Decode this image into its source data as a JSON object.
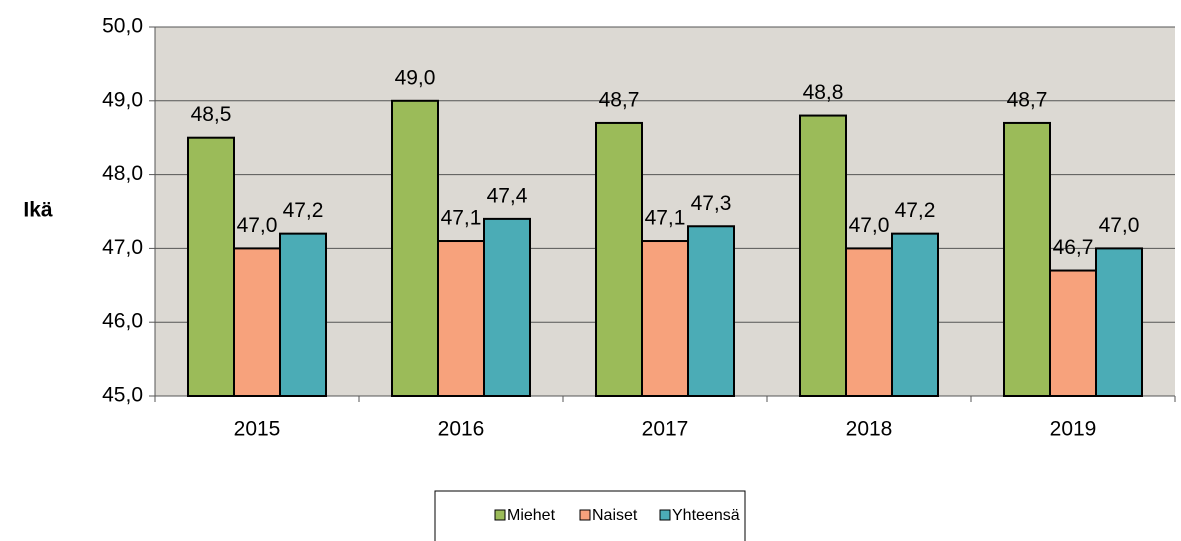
{
  "chart_data": {
    "type": "bar",
    "ylabel": "Ikä",
    "categories": [
      "2015",
      "2016",
      "2017",
      "2018",
      "2019"
    ],
    "series": [
      {
        "name": "Miehet",
        "color": "#9bbb59",
        "values": [
          48.5,
          49.0,
          48.7,
          48.8,
          48.7
        ],
        "value_labels": [
          "48,5",
          "49,0",
          "48,7",
          "48,8",
          "48,7"
        ]
      },
      {
        "name": "Naiset",
        "color": "#f7a27c",
        "values": [
          47.0,
          47.1,
          47.1,
          47.0,
          46.7
        ],
        "value_labels": [
          "47,0",
          "47,1",
          "47,1",
          "47,0",
          "46,7"
        ]
      },
      {
        "name": "Yhteensä",
        "color": "#4bacb6",
        "values": [
          47.2,
          47.4,
          47.3,
          47.2,
          47.0
        ],
        "value_labels": [
          "47,2",
          "47,4",
          "47,3",
          "47,2",
          "47,0"
        ]
      }
    ],
    "ylim": [
      45,
      50
    ],
    "yticks": [
      {
        "value": 45,
        "label": "45,0"
      },
      {
        "value": 46,
        "label": "46,0"
      },
      {
        "value": 47,
        "label": "47,0"
      },
      {
        "value": 48,
        "label": "48,0"
      },
      {
        "value": 49,
        "label": "49,0"
      },
      {
        "value": 50,
        "label": "50,0"
      }
    ],
    "grid": true
  }
}
